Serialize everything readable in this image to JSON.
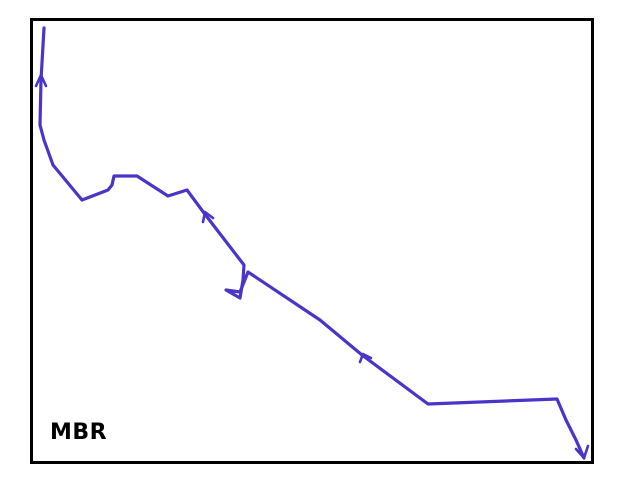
{
  "diagram": {
    "label": "MBR",
    "path_color": "#4a35c9",
    "border_color": "#000000",
    "background": "#ffffff"
  }
}
